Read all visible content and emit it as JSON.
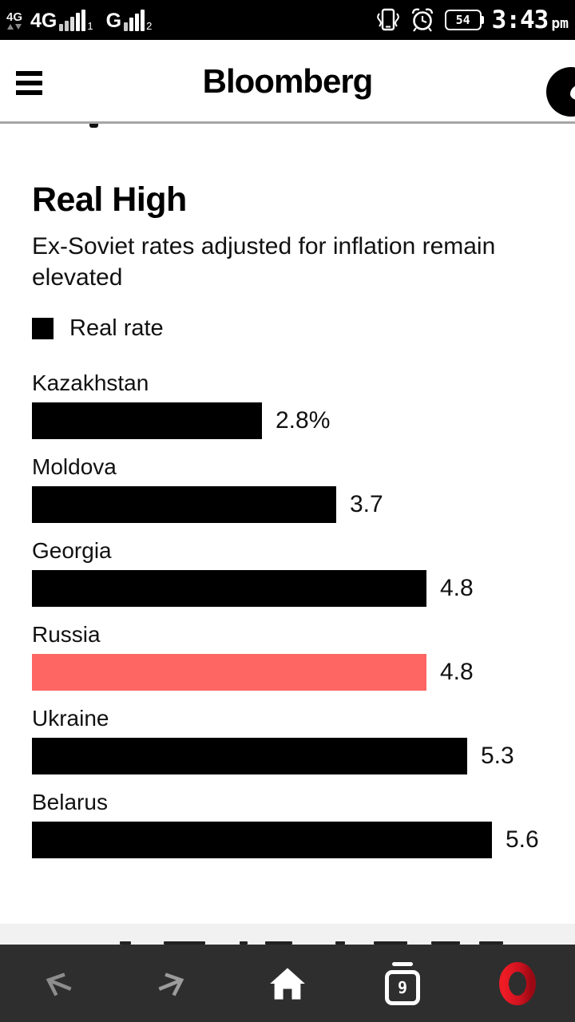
{
  "status_bar": {
    "data_activity_label": "4G",
    "sim1": {
      "network": "4G",
      "slot": "1"
    },
    "sim2": {
      "network": "G",
      "slot": "2"
    },
    "battery_level": "54",
    "time": "3:43",
    "meridiem": "pm"
  },
  "header": {
    "brand": "Bloomberg"
  },
  "chart_data": {
    "type": "bar",
    "orientation": "horizontal",
    "title": "Real High",
    "subtitle": "Ex-Soviet rates adjusted for inflation remain elevated",
    "legend": [
      {
        "label": "Real rate",
        "color": "#000000"
      }
    ],
    "categories": [
      "Kazakhstan",
      "Moldova",
      "Georgia",
      "Russia",
      "Ukraine",
      "Belarus"
    ],
    "values": [
      2.8,
      3.7,
      4.8,
      4.8,
      5.3,
      5.6
    ],
    "value_labels": [
      "2.8%",
      "3.7",
      "4.8",
      "4.8",
      "5.3",
      "5.6"
    ],
    "xlim": [
      0,
      5.6
    ],
    "bar_color": "#000000",
    "highlight_index": 3,
    "highlight_color": "#fd6663",
    "grid": false,
    "legend_position": "top-left"
  },
  "navbar": {
    "tab_count": "9"
  },
  "colors": {
    "status_bg": "#000000",
    "nav_bg": "#2e2e2e",
    "header_rule": "#a6a6a6",
    "footer_strip": "#f1f1f1",
    "opera_red_light": "#ee1c25",
    "opera_red_dark": "#9b0a14"
  }
}
